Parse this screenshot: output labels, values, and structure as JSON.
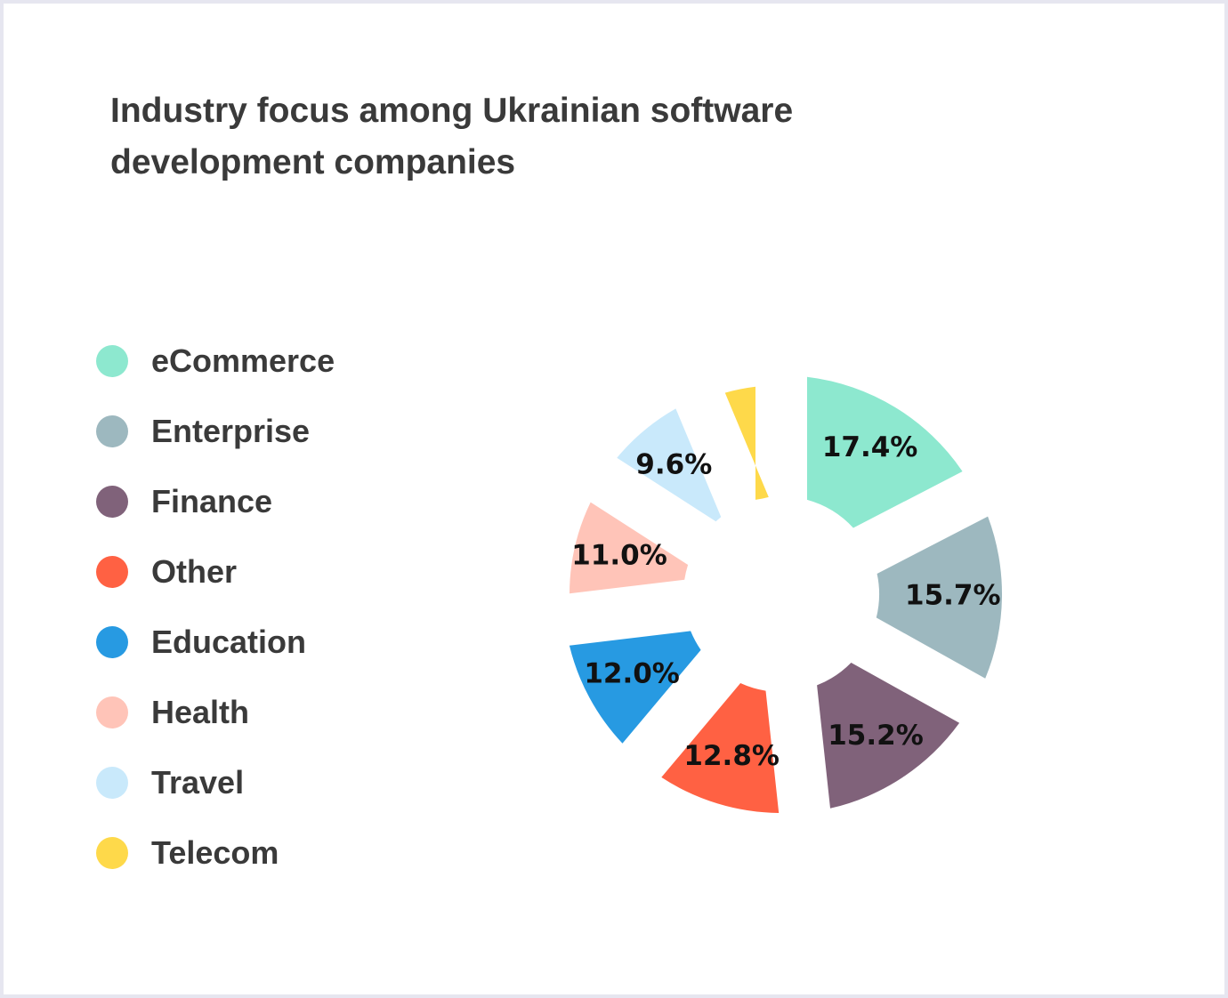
{
  "chart_data": {
    "type": "pie",
    "title": "Industry focus among Ukrainian software development companies",
    "categories": [
      "eCommerce",
      "Enterprise",
      "Finance",
      "Other",
      "Education",
      "Health",
      "Travel",
      "Telecom"
    ],
    "values": [
      17.4,
      15.7,
      15.2,
      12.8,
      12.0,
      11.0,
      9.6,
      6.3
    ],
    "labels": [
      "17.4%",
      "15.7%",
      "15.2%",
      "12.8%",
      "12.0%",
      "11.0%",
      "9.6%",
      ""
    ],
    "colors": [
      "#8de8cf",
      "#9db8bf",
      "#80627a",
      "#ff6143",
      "#279ae2",
      "#ffc4b8",
      "#c9e9fb",
      "#fed94a"
    ],
    "legend_position": "left",
    "donut": true
  }
}
